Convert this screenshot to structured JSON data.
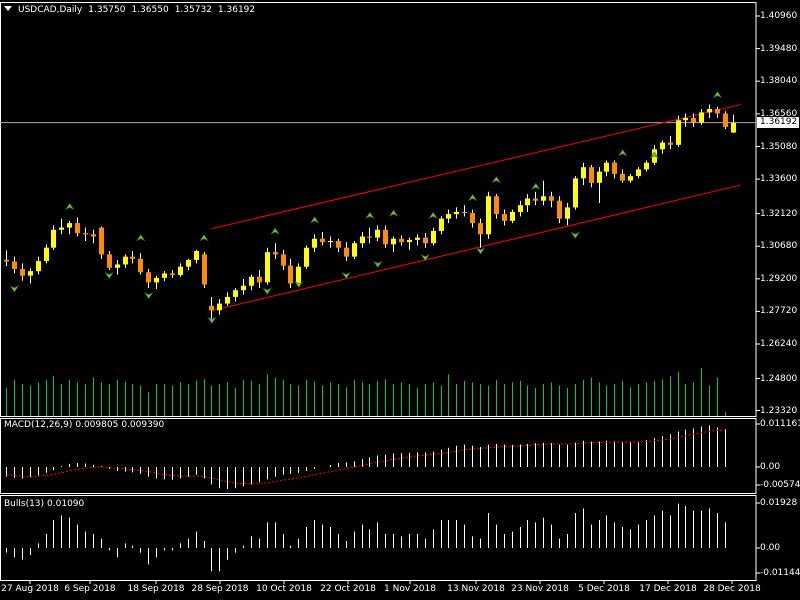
{
  "header": {
    "menu_icon": "triangle-down-icon",
    "symbol": "USDCAD,Daily",
    "open": "1.35750",
    "high": "1.36550",
    "low": "1.35732",
    "close": "1.36192"
  },
  "current_price": "1.36192",
  "price_axis": {
    "labels": [
      "1.40960",
      "1.39480",
      "1.38040",
      "1.36560",
      "1.35080",
      "1.33600",
      "1.32120",
      "1.30680",
      "1.29200",
      "1.27720",
      "1.26240",
      "1.24800",
      "1.23320"
    ]
  },
  "macd": {
    "title": "MACD(12,26,9)",
    "value1": "0.009805",
    "value2": "0.009390",
    "axis_labels": [
      "0.011161",
      "0.00",
      "-0.005745"
    ]
  },
  "bulls": {
    "title": "Bulls(13)",
    "value": "0.01090",
    "axis_labels": [
      "0.01928",
      "0.00",
      "-0.01144"
    ]
  },
  "date_axis": {
    "labels": [
      "27 Aug 2018",
      "6 Sep 2018",
      "18 Sep 2018",
      "28 Sep 2018",
      "10 Oct 2018",
      "22 Oct 2018",
      "1 Nov 2018",
      "13 Nov 2018",
      "23 Nov 2018",
      "5 Dec 2018",
      "17 Dec 2018",
      "28 Dec 2018"
    ]
  },
  "colors": {
    "background": "#000000",
    "bull_candle": "#ffff00",
    "bear_candle": "#ff8c00",
    "channel": "#ff0000",
    "volume": "#00cc33",
    "fractal": "#228b22",
    "histogram": "#ffffff",
    "signal": "#ff0000",
    "grid": "#ffffff"
  },
  "chart_data": {
    "type": "candlestick",
    "symbol": "USDCAD",
    "timeframe": "Daily",
    "ylim": [
      1.2332,
      1.4096
    ],
    "ohlc": [
      [
        1.3006,
        1.3048,
        1.2978,
        1.2998
      ],
      [
        1.2998,
        1.302,
        1.2945,
        1.2965
      ],
      [
        1.2965,
        1.299,
        1.2912,
        1.2935
      ],
      [
        1.2935,
        1.2968,
        1.29,
        1.2955
      ],
      [
        1.2955,
        1.302,
        1.294,
        1.3
      ],
      [
        1.3,
        1.3075,
        1.299,
        1.306
      ],
      [
        1.306,
        1.316,
        1.305,
        1.314
      ],
      [
        1.314,
        1.319,
        1.312,
        1.315
      ],
      [
        1.315,
        1.318,
        1.312,
        1.317
      ],
      [
        1.317,
        1.3195,
        1.311,
        1.3125
      ],
      [
        1.3125,
        1.315,
        1.309,
        1.312
      ],
      [
        1.312,
        1.314,
        1.308,
        1.311
      ],
      [
        1.315,
        1.3155,
        1.301,
        1.303
      ],
      [
        1.303,
        1.3045,
        1.296,
        1.297
      ],
      [
        1.297,
        1.3005,
        1.294,
        1.2985
      ],
      [
        1.2985,
        1.303,
        1.297,
        1.302
      ],
      [
        1.302,
        1.3045,
        1.299,
        1.301
      ],
      [
        1.301,
        1.3035,
        1.294,
        1.295
      ],
      [
        1.295,
        1.2965,
        1.288,
        1.2905
      ],
      [
        1.2905,
        1.2935,
        1.2875,
        1.2925
      ],
      [
        1.2925,
        1.2955,
        1.291,
        1.2945
      ],
      [
        1.2945,
        1.296,
        1.2925,
        1.2938
      ],
      [
        1.2938,
        1.299,
        1.293,
        1.2975
      ],
      [
        1.2975,
        1.301,
        1.296,
        1.3005
      ],
      [
        1.3005,
        1.305,
        1.299,
        1.3045
      ],
      [
        1.303,
        1.304,
        1.288,
        1.2895
      ],
      [
        1.28,
        1.284,
        1.274,
        1.278
      ],
      [
        1.278,
        1.283,
        1.276,
        1.281
      ],
      [
        1.281,
        1.286,
        1.28,
        1.284
      ],
      [
        1.284,
        1.288,
        1.282,
        1.287
      ],
      [
        1.287,
        1.292,
        1.285,
        1.289
      ],
      [
        1.289,
        1.294,
        1.287,
        1.293
      ],
      [
        1.293,
        1.296,
        1.288,
        1.2905
      ],
      [
        1.2905,
        1.306,
        1.2895,
        1.304
      ],
      [
        1.304,
        1.308,
        1.301,
        1.303
      ],
      [
        1.303,
        1.305,
        1.296,
        1.298
      ],
      [
        1.298,
        1.301,
        1.288,
        1.29
      ],
      [
        1.29,
        1.299,
        1.289,
        1.2975
      ],
      [
        1.2975,
        1.307,
        1.2965,
        1.306
      ],
      [
        1.306,
        1.312,
        1.304,
        1.31
      ],
      [
        1.31,
        1.313,
        1.307,
        1.3085
      ],
      [
        1.3085,
        1.311,
        1.306,
        1.309
      ],
      [
        1.309,
        1.31,
        1.304,
        1.306
      ],
      [
        1.306,
        1.3085,
        1.3,
        1.302
      ],
      [
        1.302,
        1.309,
        1.301,
        1.308
      ],
      [
        1.308,
        1.313,
        1.306,
        1.311
      ],
      [
        1.311,
        1.315,
        1.308,
        1.3105
      ],
      [
        1.3105,
        1.316,
        1.309,
        1.314
      ],
      [
        1.314,
        1.316,
        1.306,
        1.3075
      ],
      [
        1.3075,
        1.311,
        1.304,
        1.31
      ],
      [
        1.31,
        1.3115,
        1.307,
        1.3085
      ],
      [
        1.3085,
        1.3105,
        1.305,
        1.3095
      ],
      [
        1.3095,
        1.312,
        1.307,
        1.3105
      ],
      [
        1.3105,
        1.3125,
        1.306,
        1.308
      ],
      [
        1.308,
        1.315,
        1.307,
        1.3135
      ],
      [
        1.3135,
        1.32,
        1.312,
        1.319
      ],
      [
        1.319,
        1.323,
        1.317,
        1.321
      ],
      [
        1.321,
        1.324,
        1.319,
        1.322
      ],
      [
        1.322,
        1.325,
        1.32,
        1.3215
      ],
      [
        1.3215,
        1.323,
        1.315,
        1.317
      ],
      [
        1.317,
        1.319,
        1.306,
        1.312
      ],
      [
        1.312,
        1.331,
        1.31,
        1.329
      ],
      [
        1.329,
        1.33,
        1.319,
        1.321
      ],
      [
        1.321,
        1.323,
        1.316,
        1.318
      ],
      [
        1.318,
        1.323,
        1.317,
        1.322
      ],
      [
        1.322,
        1.327,
        1.32,
        1.325
      ],
      [
        1.325,
        1.33,
        1.322,
        1.328
      ],
      [
        1.328,
        1.331,
        1.325,
        1.327
      ],
      [
        1.327,
        1.336,
        1.325,
        1.329
      ],
      [
        1.329,
        1.331,
        1.324,
        1.327
      ],
      [
        1.327,
        1.329,
        1.317,
        1.319
      ],
      [
        1.319,
        1.326,
        1.316,
        1.324
      ],
      [
        1.324,
        1.338,
        1.323,
        1.337
      ],
      [
        1.337,
        1.344,
        1.334,
        1.342
      ],
      [
        1.342,
        1.343,
        1.333,
        1.335
      ],
      [
        1.335,
        1.342,
        1.326,
        1.34
      ],
      [
        1.34,
        1.345,
        1.338,
        1.344
      ],
      [
        1.344,
        1.345,
        1.337,
        1.339
      ],
      [
        1.339,
        1.341,
        1.335,
        1.336
      ],
      [
        1.336,
        1.339,
        1.335,
        1.338
      ],
      [
        1.338,
        1.342,
        1.337,
        1.341
      ],
      [
        1.341,
        1.345,
        1.34,
        1.344
      ],
      [
        1.344,
        1.352,
        1.343,
        1.35
      ],
      [
        1.35,
        1.354,
        1.348,
        1.353
      ],
      [
        1.353,
        1.356,
        1.35,
        1.352
      ],
      [
        1.352,
        1.365,
        1.351,
        1.363
      ],
      [
        1.363,
        1.366,
        1.36,
        1.364
      ],
      [
        1.364,
        1.366,
        1.36,
        1.362
      ],
      [
        1.362,
        1.368,
        1.361,
        1.3665
      ],
      [
        1.3665,
        1.37,
        1.364,
        1.368
      ],
      [
        1.368,
        1.369,
        1.364,
        1.366
      ],
      [
        1.366,
        1.367,
        1.359,
        1.36
      ],
      [
        1.3575,
        1.3655,
        1.3573,
        1.3619
      ]
    ],
    "volume": [
      0.35,
      0.45,
      0.4,
      0.38,
      0.42,
      0.45,
      0.5,
      0.4,
      0.45,
      0.42,
      0.4,
      0.48,
      0.42,
      0.4,
      0.45,
      0.43,
      0.4,
      0.38,
      0.3,
      0.4,
      0.4,
      0.38,
      0.42,
      0.4,
      0.44,
      0.46,
      0.38,
      0.4,
      0.42,
      0.35,
      0.45,
      0.44,
      0.4,
      0.52,
      0.48,
      0.45,
      0.4,
      0.38,
      0.45,
      0.43,
      0.38,
      0.42,
      0.4,
      0.36,
      0.45,
      0.42,
      0.4,
      0.44,
      0.46,
      0.4,
      0.42,
      0.4,
      0.35,
      0.4,
      0.42,
      0.38,
      0.52,
      0.4,
      0.44,
      0.42,
      0.4,
      0.38,
      0.45,
      0.4,
      0.42,
      0.44,
      0.38,
      0.35,
      0.4,
      0.42,
      0.38,
      0.35,
      0.4,
      0.45,
      0.48,
      0.42,
      0.38,
      0.4,
      0.44,
      0.36,
      0.4,
      0.42,
      0.44,
      0.46,
      0.5,
      0.55,
      0.4,
      0.42,
      0.6,
      0.38,
      0.48,
      0.05
    ],
    "channel": {
      "upper": [
        [
          26,
          1.3145
        ],
        [
          93,
          1.37
        ]
      ],
      "lower": [
        [
          26,
          1.2778
        ],
        [
          93,
          1.334
        ]
      ]
    },
    "fractals_up": [
      [
        8,
        1.324
      ],
      [
        17,
        1.31
      ],
      [
        25,
        1.31
      ],
      [
        34,
        1.313
      ],
      [
        39,
        1.318
      ],
      [
        46,
        1.32
      ],
      [
        49,
        1.321
      ],
      [
        54,
        1.32
      ],
      [
        59,
        1.328
      ],
      [
        62,
        1.336
      ],
      [
        67,
        1.333
      ],
      [
        78,
        1.348
      ],
      [
        82,
        1.347
      ],
      [
        90,
        1.374
      ]
    ],
    "fractals_down": [
      [
        1,
        1.288
      ],
      [
        13,
        1.294
      ],
      [
        18,
        1.285
      ],
      [
        26,
        1.274
      ],
      [
        33,
        1.287
      ],
      [
        37,
        1.29
      ],
      [
        43,
        1.294
      ],
      [
        47,
        1.299
      ],
      [
        53,
        1.302
      ],
      [
        60,
        1.305
      ],
      [
        72,
        1.312
      ]
    ],
    "macd_series": [
      -0.0025,
      -0.0028,
      -0.003,
      -0.0027,
      -0.0022,
      -0.0015,
      -0.0008,
      0.0002,
      0.0008,
      0.001,
      0.0009,
      0.0006,
      0.0002,
      -0.0005,
      -0.001,
      -0.0012,
      -0.0014,
      -0.0018,
      -0.0025,
      -0.003,
      -0.0032,
      -0.0033,
      -0.003,
      -0.0025,
      -0.002,
      -0.003,
      -0.0045,
      -0.0055,
      -0.0057,
      -0.0055,
      -0.005,
      -0.0045,
      -0.004,
      -0.0032,
      -0.0025,
      -0.002,
      -0.0018,
      -0.0015,
      -0.001,
      -0.0005,
      0.0,
      0.0005,
      0.001,
      0.0012,
      0.0015,
      0.002,
      0.0025,
      0.003,
      0.0032,
      0.0035,
      0.0036,
      0.0037,
      0.0038,
      0.0038,
      0.004,
      0.0045,
      0.005,
      0.0055,
      0.0058,
      0.0055,
      0.0052,
      0.0058,
      0.006,
      0.0058,
      0.0057,
      0.0058,
      0.006,
      0.0062,
      0.0063,
      0.0062,
      0.0058,
      0.0058,
      0.0063,
      0.0068,
      0.0066,
      0.0066,
      0.0068,
      0.0067,
      0.0065,
      0.0064,
      0.0066,
      0.007,
      0.0075,
      0.008,
      0.0085,
      0.0092,
      0.0097,
      0.01,
      0.0105,
      0.0108,
      0.0103,
      0.0098
    ],
    "macd_signal": [
      -0.002,
      -0.0022,
      -0.0024,
      -0.0025,
      -0.0024,
      -0.0022,
      -0.0019,
      -0.0015,
      -0.001,
      -0.0006,
      -0.0003,
      -0.0001,
      0.0,
      -0.0001,
      -0.0003,
      -0.0005,
      -0.0007,
      -0.0009,
      -0.0012,
      -0.0016,
      -0.0019,
      -0.0022,
      -0.0024,
      -0.0024,
      -0.0023,
      -0.0025,
      -0.0029,
      -0.0034,
      -0.0038,
      -0.0042,
      -0.0043,
      -0.0044,
      -0.0043,
      -0.0041,
      -0.0038,
      -0.0034,
      -0.0031,
      -0.0028,
      -0.0024,
      -0.002,
      -0.0016,
      -0.0012,
      -0.0008,
      -0.0004,
      0.0,
      0.0004,
      0.0008,
      0.0012,
      0.0016,
      0.002,
      0.0023,
      0.0026,
      0.0029,
      0.0031,
      0.0033,
      0.0035,
      0.0038,
      0.0041,
      0.0045,
      0.0047,
      0.0048,
      0.005,
      0.0052,
      0.0053,
      0.0054,
      0.0055,
      0.0056,
      0.0058,
      0.0059,
      0.006,
      0.006,
      0.006,
      0.006,
      0.0062,
      0.0063,
      0.0064,
      0.0064,
      0.0065,
      0.0065,
      0.0065,
      0.0065,
      0.0066,
      0.0068,
      0.007,
      0.0073,
      0.0077,
      0.0081,
      0.0085,
      0.0089,
      0.0093,
      0.0095,
      0.0094
    ],
    "bulls_series": [
      -0.002,
      -0.004,
      -0.005,
      -0.003,
      0.002,
      0.006,
      0.012,
      0.014,
      0.013,
      0.01,
      0.007,
      0.006,
      0.004,
      -0.001,
      -0.004,
      0.002,
      0.001,
      -0.002,
      -0.007,
      -0.004,
      -0.001,
      -0.001,
      0.002,
      0.004,
      0.007,
      0.003,
      -0.01,
      -0.01,
      -0.005,
      -0.002,
      0.001,
      0.005,
      0.004,
      0.011,
      0.011,
      0.006,
      0.001,
      0.004,
      0.009,
      0.012,
      0.01,
      0.009,
      0.006,
      0.003,
      0.007,
      0.01,
      0.008,
      0.011,
      0.006,
      0.006,
      0.005,
      0.006,
      0.006,
      0.004,
      0.008,
      0.012,
      0.012,
      0.012,
      0.01,
      0.005,
      0.004,
      0.015,
      0.01,
      0.006,
      0.007,
      0.009,
      0.012,
      0.011,
      0.013,
      0.01,
      0.004,
      0.006,
      0.015,
      0.017,
      0.01,
      0.012,
      0.014,
      0.011,
      0.009,
      0.008,
      0.01,
      0.012,
      0.014,
      0.016,
      0.014,
      0.019,
      0.018,
      0.016,
      0.016,
      0.017,
      0.015,
      0.011
    ]
  }
}
